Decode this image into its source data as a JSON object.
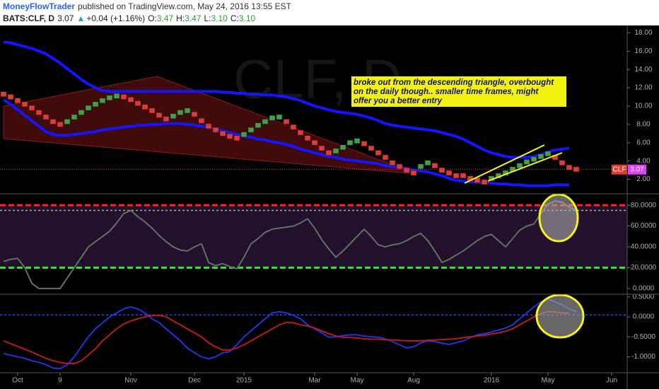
{
  "header": {
    "author": "MoneyFlowTrader",
    "published": "published on TradingView.com, May 24, 2016 13:55 EST",
    "symbol": "BATS:CLF, D",
    "change_arrow": "▲",
    "change": "+0.04 (+1.16%)",
    "ohlc": [
      {
        "label": "O:",
        "value": "3.47"
      },
      {
        "label": "H:",
        "value": "3.47"
      },
      {
        "label": "L:",
        "value": "3.10"
      },
      {
        "label": "C:",
        "value": "3.10"
      }
    ]
  },
  "annotation": [
    "broke out from the descending triangle, overbought",
    "on the daily though.. smaller time frames, might",
    "offer you a better entry"
  ],
  "chart_data": [
    {
      "type": "renko",
      "watermark": "CLF, D",
      "up_color": "#43a047",
      "down_color": "#e53935",
      "values": [
        11.3,
        11.0,
        10.6,
        10.2,
        9.8,
        9.3,
        8.8,
        8.3,
        8.0,
        8.3,
        8.8,
        9.3,
        9.8,
        10.2,
        10.6,
        10.9,
        11.1,
        11.0,
        10.7,
        10.3,
        9.9,
        9.5,
        9.0,
        8.6,
        8.9,
        9.3,
        9.5,
        9.1,
        8.4,
        7.8,
        7.4,
        7.0,
        6.7,
        6.5,
        6.9,
        7.4,
        7.9,
        8.3,
        8.7,
        8.8,
        8.3,
        7.7,
        7.1,
        6.5,
        6.0,
        5.4,
        4.9,
        5.1,
        5.5,
        6.0,
        6.2,
        5.9,
        5.4,
        4.9,
        4.4,
        3.8,
        3.4,
        3.0,
        2.7,
        3.4,
        3.8,
        3.5,
        3.0,
        2.7,
        2.4,
        2.4,
        2.1,
        1.9,
        1.7,
        2.1,
        2.4,
        2.7,
        3.1,
        3.5,
        3.9,
        4.2,
        4.5,
        4.8,
        4.4,
        3.8,
        3.3,
        3.1,
        null,
        null,
        null,
        null,
        null,
        null,
        null
      ],
      "bands": [
        {
          "color": "#1414ff",
          "values": [
            17.0,
            16.9,
            16.7,
            16.5,
            16.3,
            16.0,
            15.7,
            15.2,
            14.7,
            14.1,
            13.5,
            12.9,
            12.4,
            12.0,
            11.7,
            11.6,
            11.6,
            11.6,
            11.6,
            11.6,
            11.6,
            11.6,
            11.6,
            11.6,
            11.6,
            11.6,
            11.6,
            11.6,
            11.6,
            11.6,
            11.6,
            11.5,
            11.5,
            11.4,
            11.4,
            11.3,
            11.3,
            11.2,
            11.2,
            11.1,
            11.0,
            10.8,
            10.6,
            10.3,
            10.0,
            9.8,
            9.6,
            9.4,
            9.3,
            9.2,
            9.1,
            8.9,
            8.7,
            8.4,
            8.1,
            7.9,
            7.8,
            7.7,
            7.6,
            7.5,
            7.4,
            7.3,
            7.1,
            6.9,
            6.7,
            6.4,
            6.0,
            5.6,
            5.2,
            4.9,
            4.7,
            4.5,
            4.4,
            4.4,
            4.4,
            4.5,
            4.7,
            5.0,
            5.2,
            5.3,
            5.4,
            null,
            null,
            null,
            null,
            null,
            null,
            null,
            null
          ]
        },
        {
          "color": "#1414ff",
          "values": [
            10.7,
            10.2,
            9.6,
            9.0,
            8.4,
            7.8,
            7.2,
            6.9,
            6.8,
            6.8,
            6.9,
            7.0,
            7.1,
            7.2,
            7.4,
            7.5,
            7.6,
            7.7,
            7.8,
            7.9,
            7.9,
            8.0,
            8.0,
            8.1,
            8.1,
            8.1,
            8.0,
            7.9,
            7.8,
            7.7,
            7.5,
            7.3,
            7.1,
            6.9,
            6.7,
            6.6,
            6.4,
            6.3,
            6.1,
            6.0,
            5.8,
            5.6,
            5.3,
            5.1,
            4.9,
            4.7,
            4.5,
            4.4,
            4.2,
            4.1,
            4.0,
            3.9,
            3.8,
            3.7,
            3.5,
            3.4,
            3.3,
            3.2,
            3.0,
            2.9,
            2.8,
            2.6,
            2.4,
            2.1,
            1.9,
            1.8,
            1.7,
            1.7,
            1.6,
            1.6,
            1.5,
            1.5,
            1.4,
            1.4,
            1.3,
            1.3,
            1.3,
            1.3,
            1.4,
            1.4,
            1.4,
            null,
            null,
            null,
            null,
            null,
            null,
            null,
            null
          ]
        }
      ],
      "last_price": {
        "label": "CLF",
        "value": 3.07,
        "color": "#e53935",
        "badge_color": "#e040fb"
      },
      "ylim": [
        0.5,
        18.8
      ],
      "yticks": [
        {
          "value": 2,
          "label": "2.00"
        },
        {
          "value": 4,
          "label": "4.00"
        },
        {
          "value": 6,
          "label": "6.00"
        },
        {
          "value": 8,
          "label": "8.00"
        },
        {
          "value": 10,
          "label": "10.00"
        },
        {
          "value": 12,
          "label": "12.00"
        },
        {
          "value": 14,
          "label": "14.00"
        },
        {
          "value": 16,
          "label": "16.00"
        },
        {
          "value": 18,
          "label": "18.00"
        }
      ]
    },
    {
      "type": "line",
      "series": [
        {
          "color": "#5e735e",
          "values": [
            26,
            28,
            29,
            20,
            5,
            0,
            0,
            0,
            0,
            10,
            20,
            30,
            40,
            45,
            50,
            55,
            63,
            72,
            75,
            69,
            64,
            58,
            51,
            45,
            40,
            37,
            36,
            40,
            43,
            25,
            22,
            24,
            21,
            19,
            30,
            43,
            48,
            54,
            57,
            58,
            59,
            60,
            63,
            67,
            58,
            47,
            38,
            30,
            36,
            43,
            50,
            57,
            50,
            42,
            40,
            42,
            43,
            46,
            50,
            53,
            46,
            36,
            25,
            28,
            32,
            36,
            41,
            46,
            50,
            52,
            46,
            40,
            48,
            56,
            60,
            62,
            72,
            81,
            84,
            83,
            78,
            75,
            null,
            null,
            null,
            null,
            null,
            null,
            null
          ]
        }
      ],
      "levels": [
        {
          "value": 80,
          "color": "#ff2222",
          "style": "dashed"
        },
        {
          "value": 20,
          "color": "#22ee22",
          "style": "dashed"
        },
        {
          "value": 75,
          "color": "#aaaaaa",
          "style": "dotted"
        }
      ],
      "band_color": "#3a1a4a",
      "ylim": [
        -4.8,
        90.3
      ],
      "yticks": [
        {
          "value": 0,
          "label": "0.0000"
        },
        {
          "value": 20,
          "label": "20.0000"
        },
        {
          "value": 40,
          "label": "40.0000"
        },
        {
          "value": 60,
          "label": "60.0000"
        },
        {
          "value": 80,
          "label": "80.0000"
        }
      ]
    },
    {
      "type": "line",
      "categories": [
        null,
        null,
        "Oct",
        null,
        null,
        null,
        null,
        null,
        "9",
        null,
        null,
        null,
        null,
        null,
        null,
        null,
        null,
        null,
        "Nov",
        null,
        null,
        null,
        null,
        null,
        null,
        null,
        null,
        "Dec",
        null,
        null,
        null,
        null,
        null,
        null,
        "2015",
        null,
        null,
        null,
        null,
        null,
        null,
        null,
        null,
        null,
        "Mar",
        null,
        null,
        null,
        null,
        null,
        "May",
        null,
        null,
        null,
        null,
        null,
        null,
        null,
        "Aug",
        null,
        null,
        null,
        null,
        null,
        null,
        null,
        null,
        null,
        null,
        "2016",
        null,
        null,
        null,
        null,
        null,
        null,
        null,
        "May",
        null,
        null,
        null,
        null,
        null,
        null,
        null,
        null,
        "Jun",
        null,
        null
      ],
      "series": [
        {
          "color": "#2233dd",
          "values": [
            -0.92,
            -0.96,
            -1.0,
            -1.04,
            -1.1,
            -1.14,
            -1.2,
            -1.28,
            -1.3,
            -1.2,
            -1.0,
            -0.75,
            -0.5,
            -0.3,
            -0.15,
            0.0,
            0.1,
            0.2,
            0.25,
            0.2,
            0.1,
            -0.05,
            -0.14,
            -0.3,
            -0.45,
            -0.6,
            -0.78,
            -0.9,
            -1.0,
            -1.05,
            -1.0,
            -0.9,
            -0.87,
            -0.7,
            -0.5,
            -0.35,
            -0.2,
            -0.05,
            0.1,
            0.13,
            0.1,
            0.04,
            -0.05,
            -0.2,
            -0.3,
            -0.4,
            -0.51,
            -0.5,
            -0.47,
            -0.45,
            -0.45,
            -0.48,
            -0.5,
            -0.51,
            -0.55,
            -0.62,
            -0.7,
            -0.78,
            -0.75,
            -0.65,
            -0.6,
            -0.62,
            -0.66,
            -0.69,
            -0.65,
            -0.6,
            -0.52,
            -0.45,
            -0.42,
            -0.38,
            -0.33,
            -0.28,
            -0.2,
            -0.05,
            0.1,
            0.25,
            0.38,
            0.45,
            0.38,
            0.3,
            0.2,
            0.13,
            null,
            null,
            null,
            null,
            null,
            null,
            null
          ]
        },
        {
          "color": "#b71c1c",
          "values": [
            -0.6,
            -0.67,
            -0.74,
            -0.81,
            -0.88,
            -0.96,
            -1.04,
            -1.1,
            -1.14,
            -1.17,
            -1.17,
            -1.1,
            -0.95,
            -0.8,
            -0.6,
            -0.45,
            -0.3,
            -0.18,
            -0.1,
            -0.05,
            0.0,
            0.03,
            0.04,
            0.0,
            -0.1,
            -0.2,
            -0.3,
            -0.4,
            -0.5,
            -0.65,
            -0.75,
            -0.83,
            -0.83,
            -0.78,
            -0.7,
            -0.6,
            -0.5,
            -0.4,
            -0.3,
            -0.2,
            -0.14,
            -0.15,
            -0.2,
            -0.23,
            -0.28,
            -0.35,
            -0.42,
            -0.48,
            -0.51,
            -0.52,
            -0.53,
            -0.55,
            -0.56,
            -0.56,
            -0.57,
            -0.58,
            -0.59,
            -0.6,
            -0.6,
            -0.6,
            -0.59,
            -0.58,
            -0.57,
            -0.56,
            -0.55,
            -0.52,
            -0.5,
            -0.48,
            -0.46,
            -0.43,
            -0.4,
            -0.36,
            -0.3,
            -0.2,
            -0.1,
            0.0,
            0.08,
            0.13,
            0.12,
            0.1,
            0.09,
            null,
            null,
            null,
            null,
            null,
            null,
            null,
            null
          ]
        }
      ],
      "levels": [
        {
          "value": 0.05,
          "color": "#3344ff",
          "style": "dotted"
        }
      ],
      "ylim": [
        -1.4,
        0.55
      ],
      "yticks": [
        {
          "value": -1,
          "label": "-1.0000"
        },
        {
          "value": -0.5,
          "label": "-0.5000"
        },
        {
          "value": 0,
          "label": "0.0000"
        },
        {
          "value": 0.5,
          "label": "0.5000"
        }
      ]
    }
  ]
}
